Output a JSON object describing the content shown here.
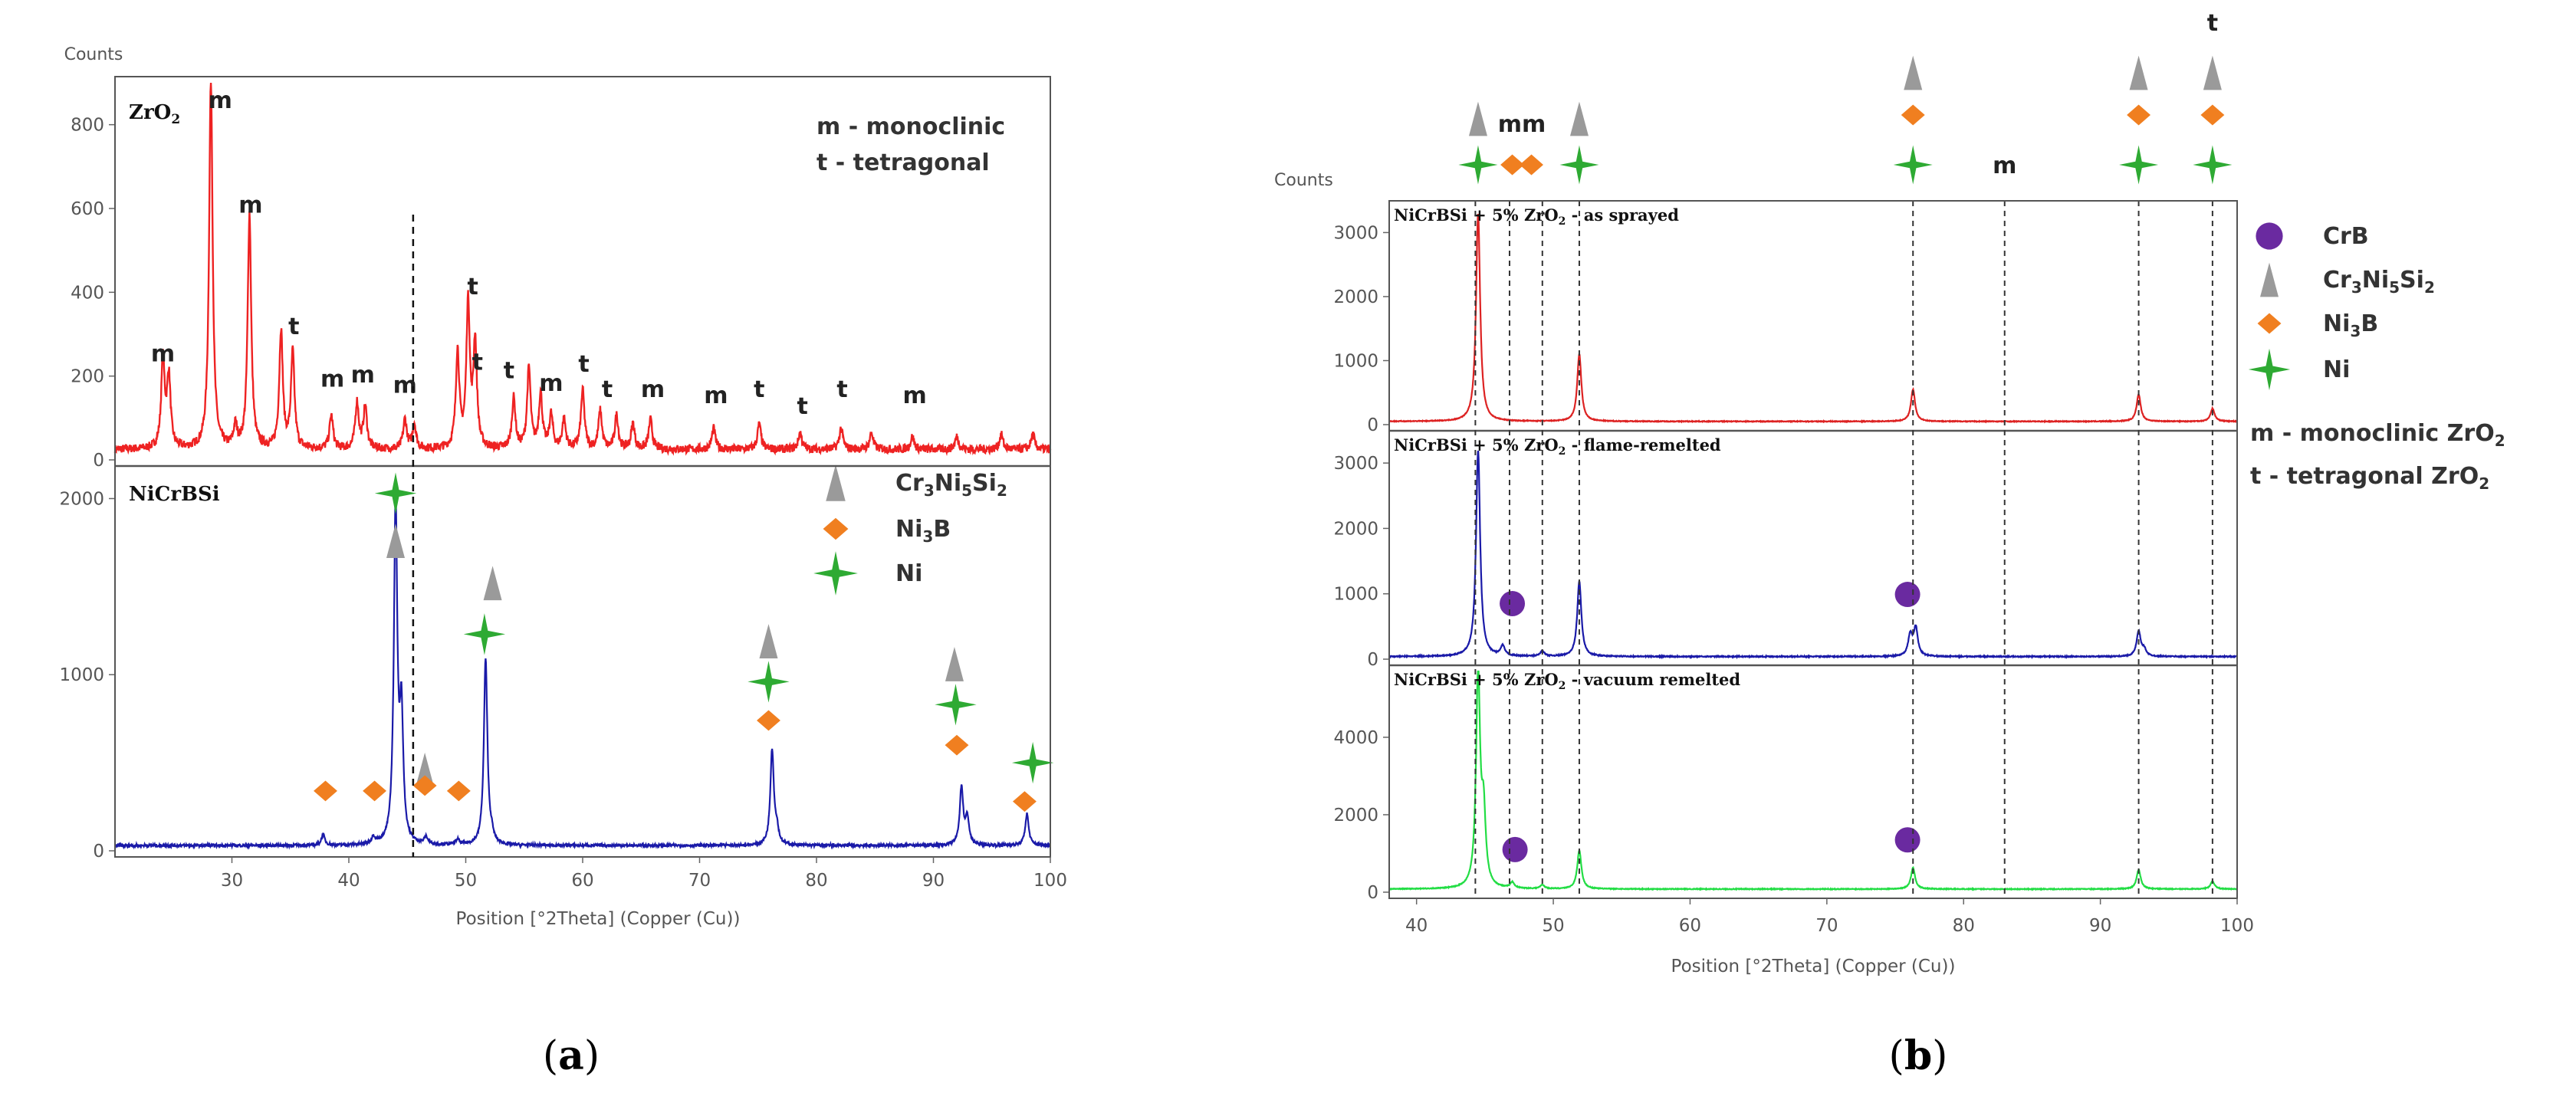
{
  "colors": {
    "zro2": "#ee2222",
    "sprayed": "#dd2222",
    "nicrbsi": "#1a1aa8",
    "flame": "#1a1aa8",
    "vacuum": "#22dd44",
    "tri": "#9a9a9a",
    "diamond": "#f07f20",
    "star": "#2eaa33",
    "dot": "#6a2aa0"
  },
  "chart_data": [
    {
      "type": "line",
      "id": "a",
      "caption_open": "(",
      "caption_letter": "a",
      "caption_close": ")",
      "xlabel": "Position [°2Theta] (Copper (Cu))",
      "xlim": [
        20,
        100
      ],
      "xticks": [
        30,
        40,
        50,
        60,
        70,
        80,
        90,
        100
      ],
      "dashed_line_x": 45.5,
      "subplots": [
        {
          "name": "zro2",
          "title_main": "ZrO",
          "title_sub": "2",
          "ylabel": "Counts",
          "ylim": [
            0,
            900
          ],
          "yticks": [
            0,
            200,
            400,
            600,
            800
          ],
          "color": "#ee2222",
          "baseline": 25,
          "noise": 10,
          "peaks": [
            [
              24.1,
              210
            ],
            [
              24.6,
              170
            ],
            [
              28.2,
              880
            ],
            [
              30.3,
              50
            ],
            [
              31.5,
              560
            ],
            [
              34.2,
              280
            ],
            [
              35.2,
              230
            ],
            [
              38.5,
              80
            ],
            [
              40.7,
              110
            ],
            [
              41.4,
              100
            ],
            [
              44.8,
              70
            ],
            [
              45.6,
              60
            ],
            [
              49.3,
              230
            ],
            [
              50.2,
              340
            ],
            [
              50.8,
              250
            ],
            [
              54.1,
              120
            ],
            [
              55.4,
              190
            ],
            [
              56.4,
              130
            ],
            [
              57.3,
              80
            ],
            [
              58.4,
              70
            ],
            [
              60.0,
              140
            ],
            [
              61.5,
              90
            ],
            [
              62.9,
              80
            ],
            [
              64.3,
              60
            ],
            [
              65.8,
              70
            ],
            [
              71.2,
              50
            ],
            [
              75.1,
              60
            ],
            [
              78.6,
              40
            ],
            [
              82.1,
              50
            ],
            [
              84.7,
              40
            ],
            [
              88.2,
              30
            ],
            [
              92.0,
              30
            ],
            [
              95.8,
              35
            ],
            [
              98.5,
              35
            ]
          ],
          "labels": [
            {
              "text": "m",
              "x": 24.1,
              "y": 235
            },
            {
              "text": "m",
              "x": 29.0,
              "y": 840
            },
            {
              "text": "m",
              "x": 31.6,
              "y": 590
            },
            {
              "text": "t",
              "x": 35.3,
              "y": 300
            },
            {
              "text": "m",
              "x": 38.6,
              "y": 175
            },
            {
              "text": "m",
              "x": 41.2,
              "y": 185
            },
            {
              "text": "m",
              "x": 44.8,
              "y": 160
            },
            {
              "text": "t",
              "x": 50.6,
              "y": 395
            },
            {
              "text": "t",
              "x": 51.0,
              "y": 215
            },
            {
              "text": "t",
              "x": 53.7,
              "y": 195
            },
            {
              "text": "m",
              "x": 57.3,
              "y": 165
            },
            {
              "text": "t",
              "x": 60.1,
              "y": 210
            },
            {
              "text": "t",
              "x": 62.1,
              "y": 150
            },
            {
              "text": "m",
              "x": 66.0,
              "y": 150
            },
            {
              "text": "m",
              "x": 71.4,
              "y": 135
            },
            {
              "text": "t",
              "x": 75.1,
              "y": 150
            },
            {
              "text": "t",
              "x": 78.8,
              "y": 110
            },
            {
              "text": "t",
              "x": 82.2,
              "y": 150
            },
            {
              "text": "m",
              "x": 88.4,
              "y": 135
            }
          ],
          "legend": [
            {
              "text": "m - monoclinic"
            },
            {
              "text": "t  - tetragonal"
            }
          ]
        },
        {
          "name": "nicrbsi",
          "title": "NiCrBSi",
          "ylim": [
            0,
            2150
          ],
          "yticks": [
            0,
            1000,
            2000
          ],
          "color": "#1a1aa8",
          "baseline": 30,
          "noise": 8,
          "peaks": [
            [
              37.8,
              60
            ],
            [
              42.1,
              40
            ],
            [
              44.0,
              1920
            ],
            [
              44.5,
              700
            ],
            [
              46.6,
              40
            ],
            [
              49.3,
              30
            ],
            [
              51.7,
              1060
            ],
            [
              52.2,
              40
            ],
            [
              76.2,
              540
            ],
            [
              76.6,
              80
            ],
            [
              92.4,
              330
            ],
            [
              92.9,
              150
            ],
            [
              98.0,
              180
            ]
          ],
          "markers": [
            {
              "kind": "diamond",
              "x": 38.0,
              "y": 340
            },
            {
              "kind": "diamond",
              "x": 42.2,
              "y": 340
            },
            {
              "kind": "star",
              "x": 44.0,
              "y": 2030
            },
            {
              "kind": "tri",
              "x": 44.0,
              "y": 1760
            },
            {
              "kind": "tri",
              "x": 46.5,
              "y": 460
            },
            {
              "kind": "diamond",
              "x": 46.5,
              "y": 370
            },
            {
              "kind": "diamond",
              "x": 49.4,
              "y": 340
            },
            {
              "kind": "tri",
              "x": 52.3,
              "y": 1520
            },
            {
              "kind": "star",
              "x": 51.6,
              "y": 1230
            },
            {
              "kind": "tri",
              "x": 75.9,
              "y": 1190
            },
            {
              "kind": "star",
              "x": 75.9,
              "y": 960
            },
            {
              "kind": "diamond",
              "x": 75.9,
              "y": 740
            },
            {
              "kind": "tri",
              "x": 91.8,
              "y": 1060
            },
            {
              "kind": "star",
              "x": 91.9,
              "y": 830
            },
            {
              "kind": "diamond",
              "x": 92.0,
              "y": 600
            },
            {
              "kind": "star",
              "x": 98.5,
              "y": 500
            },
            {
              "kind": "diamond",
              "x": 97.8,
              "y": 280
            }
          ],
          "legend": [
            {
              "kind": "tri",
              "text": "Cr",
              "sub1": "3",
              "mid": "Ni",
              "sub2": "5",
              "mid2": "Si",
              "sub3": "2"
            },
            {
              "kind": "diamond",
              "text": "Ni",
              "sub1": "3",
              "mid": "B"
            },
            {
              "kind": "star",
              "text": "Ni"
            }
          ]
        }
      ]
    },
    {
      "type": "line",
      "id": "b",
      "caption_open": "(",
      "caption_letter": "b",
      "caption_close": ")",
      "xlabel": "Position [°2Theta] (Copper (Cu))",
      "ylabel": "Counts",
      "xlim": [
        38,
        100
      ],
      "xticks": [
        40,
        50,
        60,
        70,
        80,
        90,
        100
      ],
      "dashed_lines_x": [
        44.3,
        46.8,
        49.2,
        51.9,
        76.3,
        83.0,
        92.8,
        98.2
      ],
      "top_markers": [
        {
          "kind": "tri",
          "x": 44.5,
          "row": 0
        },
        {
          "kind": "star",
          "x": 44.5,
          "row": 2
        },
        {
          "kind": "diamond",
          "x": 47.0,
          "row": 2
        },
        {
          "kind": "diamond",
          "x": 48.4,
          "row": 2
        },
        {
          "kind": "tri",
          "x": 51.9,
          "row": 0
        },
        {
          "kind": "star",
          "x": 51.9,
          "row": 2
        },
        {
          "kind": "tri",
          "x": 76.3,
          "row": -1
        },
        {
          "kind": "diamond",
          "x": 76.3,
          "row": 0.6
        },
        {
          "kind": "star",
          "x": 76.3,
          "row": 2
        },
        {
          "kind": "tri",
          "x": 92.8,
          "row": -1
        },
        {
          "kind": "diamond",
          "x": 92.8,
          "row": 0.6
        },
        {
          "kind": "star",
          "x": 92.8,
          "row": 2
        },
        {
          "kind": "tri",
          "x": 98.2,
          "row": -1
        },
        {
          "kind": "diamond",
          "x": 98.2,
          "row": 0.6
        },
        {
          "kind": "star",
          "x": 98.2,
          "row": 2
        }
      ],
      "top_labels": [
        {
          "text": "mm",
          "x": 47.7,
          "row": 0.15
        },
        {
          "text": "m",
          "x": 83.0,
          "row": 1.7
        },
        {
          "text": "t",
          "x": 98.2,
          "row": -2.2
        }
      ],
      "subplots": [
        {
          "name": "sprayed",
          "title_a": "NiCrBSi + 5% ZrO",
          "title_sub": "2",
          "title_b": " - as sprayed",
          "ylim": [
            0,
            3400
          ],
          "yticks": [
            0,
            1000,
            2000,
            3000
          ],
          "color": "#dd2222",
          "baseline": 50,
          "noise": 6,
          "peaks": [
            [
              44.5,
              3250
            ],
            [
              51.9,
              1050
            ],
            [
              76.3,
              500
            ],
            [
              92.8,
              420
            ],
            [
              98.2,
              200
            ]
          ],
          "markers": []
        },
        {
          "name": "flame",
          "title_a": "NiCrBSi + 5% ZrO",
          "title_sub": "2",
          "title_b": " - flame-remelted",
          "ylim": [
            0,
            3400
          ],
          "yticks": [
            0,
            1000,
            2000,
            3000
          ],
          "color": "#1a1aa8",
          "baseline": 40,
          "noise": 8,
          "peaks": [
            [
              44.5,
              3150
            ],
            [
              46.3,
              150
            ],
            [
              49.2,
              80
            ],
            [
              51.9,
              1150
            ],
            [
              76.1,
              320
            ],
            [
              76.5,
              430
            ],
            [
              92.8,
              380
            ],
            [
              93.2,
              100
            ]
          ],
          "markers": [
            {
              "kind": "dot",
              "x": 47.0,
              "y": 850
            },
            {
              "kind": "dot",
              "x": 75.9,
              "y": 990
            }
          ]
        },
        {
          "name": "vacuum",
          "title_a": "NiCrBSi + 5% ZrO",
          "title_sub": "2",
          "title_b": " - vacuum remelted",
          "ylim": [
            0,
            5700
          ],
          "yticks": [
            0,
            2000,
            4000
          ],
          "color": "#22dd44",
          "baseline": 80,
          "noise": 10,
          "peaks": [
            [
              44.5,
              5500
            ],
            [
              44.9,
              1800
            ],
            [
              47.0,
              150
            ],
            [
              49.2,
              100
            ],
            [
              51.9,
              1000
            ],
            [
              76.3,
              550
            ],
            [
              92.8,
              500
            ],
            [
              98.2,
              200
            ]
          ],
          "markers": [
            {
              "kind": "dot",
              "x": 47.2,
              "y": 1100
            },
            {
              "kind": "dot",
              "x": 75.9,
              "y": 1350
            }
          ]
        }
      ],
      "legend": [
        {
          "kind": "dot",
          "text": "CrB"
        },
        {
          "kind": "tri",
          "text": "Cr",
          "sub1": "3",
          "mid": "Ni",
          "sub2": "5",
          "mid2": "Si",
          "sub3": "2"
        },
        {
          "kind": "diamond",
          "text": "Ni",
          "sub1": "3",
          "mid": "B"
        },
        {
          "kind": "star",
          "text": "Ni"
        }
      ],
      "legend_text": [
        {
          "text": "m - monoclinic ZrO",
          "sub": "2"
        },
        {
          "text": "t  - tetragonal ZrO",
          "sub": "2"
        }
      ]
    }
  ]
}
